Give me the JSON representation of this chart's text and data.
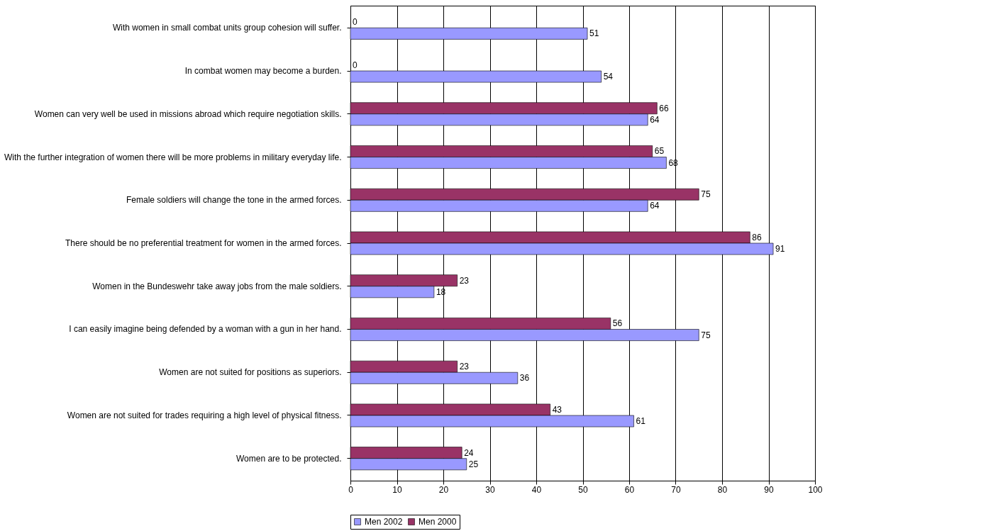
{
  "chart_data": {
    "type": "bar",
    "orientation": "horizontal",
    "categories": [
      "With women in small combat units group cohesion will suffer.",
      "In combat women may become a burden.",
      "Women can very well be used in missions abroad which require negotiation skills.",
      "With the further integration of women there will be more problems in military everyday life.",
      "Female soldiers will change the tone in the armed forces.",
      "There should be no preferential treatment for women in the armed forces.",
      "Women in the Bundeswehr take away jobs from the male soldiers.",
      "I can easily imagine being defended by a woman with a gun in her hand.",
      "Women are not suited for positions as superiors.",
      "Women are not suited for trades requiring a high level of physical fitness.",
      "Women are to be protected."
    ],
    "series": [
      {
        "name": "Men 2000",
        "color": "#993366",
        "values": [
          0,
          0,
          66,
          65,
          75,
          86,
          23,
          56,
          23,
          43,
          24
        ]
      },
      {
        "name": "Men 2002",
        "color": "#9999ff",
        "values": [
          51,
          54,
          64,
          68,
          64,
          91,
          18,
          75,
          36,
          61,
          25
        ]
      }
    ],
    "xlim": [
      0,
      100
    ],
    "xticks": [
      0,
      10,
      20,
      30,
      40,
      50,
      60,
      70,
      80,
      90,
      100
    ],
    "grid": "x",
    "legend": "bottom",
    "data_labels": true
  }
}
